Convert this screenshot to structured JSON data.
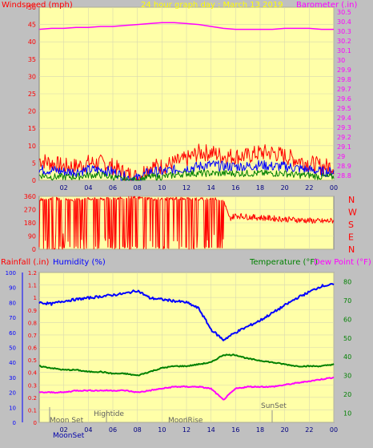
{
  "colors": {
    "windspeed": "#ff0000",
    "barometer": "#ff00ff",
    "title": "#ffff00",
    "humidity": "#0000ff",
    "temperature": "#008000",
    "dewpoint": "#ff00ff",
    "rainfall": "#ff0000",
    "plot_bg": "#ffffa8",
    "frame_bg": "#c0c0c0",
    "grid": "#d8d8b0"
  },
  "chart_data": [
    {
      "type": "line",
      "title": "24 hour graph day : March 13 2019",
      "left_label": "Windspeed (mph)",
      "right_label": "Barometer (.in)",
      "x_ticks": [
        "02",
        "04",
        "06",
        "08",
        "10",
        "12",
        "14",
        "16",
        "18",
        "20",
        "22",
        "00"
      ],
      "y_left_ticks": [
        "0",
        "5",
        "10",
        "15",
        "20",
        "25",
        "30",
        "35",
        "40",
        "45",
        "50"
      ],
      "y_left_range": [
        0,
        50
      ],
      "y_right_ticks": [
        "28.8",
        "28.9",
        "29",
        "29.1",
        "29.2",
        "29.3",
        "29.4",
        "29.5",
        "29.6",
        "29.7",
        "29.8",
        "29.9",
        "30",
        "30.1",
        "30.2",
        "30.3",
        "30.4",
        "30.5"
      ],
      "y_right_range": [
        28.75,
        30.55
      ],
      "series": [
        {
          "role": "barometer",
          "x": [
            0,
            1,
            2,
            3,
            4,
            5,
            6,
            7,
            8,
            9,
            10,
            11,
            12,
            13,
            14,
            15,
            16,
            17,
            18,
            19,
            20,
            21,
            22,
            23,
            24
          ],
          "values": [
            30.32,
            30.33,
            30.33,
            30.34,
            30.34,
            30.35,
            30.35,
            30.36,
            30.37,
            30.38,
            30.39,
            30.39,
            30.38,
            30.37,
            30.35,
            30.33,
            30.32,
            30.32,
            30.32,
            30.32,
            30.33,
            30.33,
            30.33,
            30.32,
            30.32
          ]
        },
        {
          "role": "wind_gust",
          "x": [
            0,
            1,
            2,
            3,
            4,
            5,
            6,
            7,
            8,
            9,
            10,
            11,
            12,
            13,
            14,
            15,
            16,
            17,
            18,
            19,
            20,
            21,
            22,
            23,
            24
          ],
          "values": [
            6,
            5,
            4,
            4,
            5,
            5,
            4,
            2,
            1,
            4,
            4,
            5,
            6,
            8,
            8,
            7,
            7,
            7,
            8,
            8,
            7,
            6,
            5,
            4,
            4
          ]
        },
        {
          "role": "wind_avg",
          "x": [
            0,
            1,
            2,
            3,
            4,
            5,
            6,
            7,
            8,
            9,
            10,
            11,
            12,
            13,
            14,
            15,
            16,
            17,
            18,
            19,
            20,
            21,
            22,
            23,
            24
          ],
          "values": [
            3,
            3,
            2.5,
            2.5,
            3,
            3,
            2.5,
            1,
            0.5,
            2.5,
            2.5,
            3,
            3.5,
            4,
            4.5,
            4,
            4,
            4,
            4.5,
            4,
            4,
            3.5,
            3,
            2.5,
            2.5
          ]
        },
        {
          "role": "wind_low",
          "x": [
            0,
            1,
            2,
            3,
            4,
            5,
            6,
            7,
            8,
            9,
            10,
            11,
            12,
            13,
            14,
            15,
            16,
            17,
            18,
            19,
            20,
            21,
            22,
            23,
            24
          ],
          "values": [
            1.5,
            1,
            1,
            1,
            1.5,
            1.5,
            1,
            0,
            0,
            1,
            1,
            1.5,
            2,
            2,
            2,
            2,
            2,
            2,
            2,
            2,
            2,
            1.5,
            1.5,
            1,
            1
          ]
        }
      ]
    },
    {
      "type": "line",
      "y_left_ticks": [
        "360",
        "270",
        "180",
        "90",
        "0"
      ],
      "y_left_range": [
        0,
        360
      ],
      "compass_labels": [
        "N",
        "W",
        "S",
        "E",
        "N"
      ],
      "series": [
        {
          "role": "wind_direction",
          "x": [
            0,
            1,
            2,
            3,
            4,
            5,
            6,
            7,
            8,
            9,
            10,
            11,
            12,
            13,
            14,
            15,
            15.5,
            16,
            17,
            18,
            19,
            20,
            21,
            22,
            23,
            24
          ],
          "values": [
            340,
            345,
            340,
            335,
            345,
            340,
            345,
            350,
            350,
            345,
            340,
            345,
            345,
            340,
            345,
            340,
            210,
            230,
            220,
            215,
            210,
            205,
            200,
            195,
            190,
            195
          ]
        }
      ]
    },
    {
      "type": "line",
      "left_label_1": "Rainfall (.in)",
      "left_label_2": "Humidity (%)",
      "right_label_1": "Temperature (°F)",
      "right_label_2": "Dew Point (°F)",
      "x_ticks": [
        "02",
        "04",
        "06",
        "08",
        "10",
        "12",
        "14",
        "16",
        "18",
        "20",
        "22",
        "00"
      ],
      "rain_ticks": [
        "0",
        "0.1",
        "0.2",
        "0.3",
        "0.4",
        "0.5",
        "0.6",
        "0.7",
        "0.8",
        "0.9",
        "1",
        "1.1",
        "1.2"
      ],
      "rain_range": [
        0,
        1.2
      ],
      "humidity_ticks": [
        "0",
        "10",
        "20",
        "30",
        "40",
        "50",
        "60",
        "70",
        "80",
        "90",
        "100"
      ],
      "humidity_range": [
        0,
        100
      ],
      "temp_ticks": [
        "10",
        "20",
        "30",
        "40",
        "50",
        "60",
        "70",
        "80"
      ],
      "temp_range": [
        5,
        85
      ],
      "series": [
        {
          "role": "humidity",
          "x": [
            0,
            1,
            2,
            3,
            4,
            5,
            6,
            7,
            8,
            9,
            10,
            11,
            12,
            13,
            14,
            15,
            16,
            17,
            18,
            19,
            20,
            21,
            22,
            23,
            24
          ],
          "values": [
            80,
            79,
            81,
            82,
            83,
            84,
            85,
            86,
            88,
            83,
            82,
            81,
            80,
            76,
            62,
            55,
            60,
            64,
            68,
            73,
            78,
            83,
            87,
            91,
            92
          ]
        },
        {
          "role": "temperature",
          "x": [
            0,
            1,
            2,
            3,
            4,
            5,
            6,
            7,
            8,
            9,
            10,
            11,
            12,
            13,
            14,
            15,
            16,
            17,
            18,
            19,
            20,
            21,
            22,
            23,
            24
          ],
          "values": [
            35,
            34,
            33,
            33,
            32,
            32,
            31,
            31,
            30,
            32,
            34,
            35,
            35,
            36,
            37,
            41,
            41,
            39,
            38,
            37,
            36,
            35,
            35,
            35,
            36
          ]
        },
        {
          "role": "dewpoint",
          "x": [
            0,
            1,
            2,
            3,
            4,
            5,
            6,
            7,
            8,
            9,
            10,
            11,
            12,
            13,
            14,
            15,
            16,
            17,
            18,
            19,
            20,
            21,
            22,
            23,
            24
          ],
          "values": [
            21,
            21,
            21,
            22,
            22,
            22,
            22,
            22,
            21,
            22,
            23,
            24,
            24,
            24,
            23,
            17,
            23,
            24,
            24,
            24,
            25,
            26,
            27,
            28,
            29
          ]
        }
      ],
      "annotations": [
        "Moon Set",
        "Hightide",
        "MoonRise",
        "SunSet",
        "MoonSet"
      ]
    }
  ]
}
